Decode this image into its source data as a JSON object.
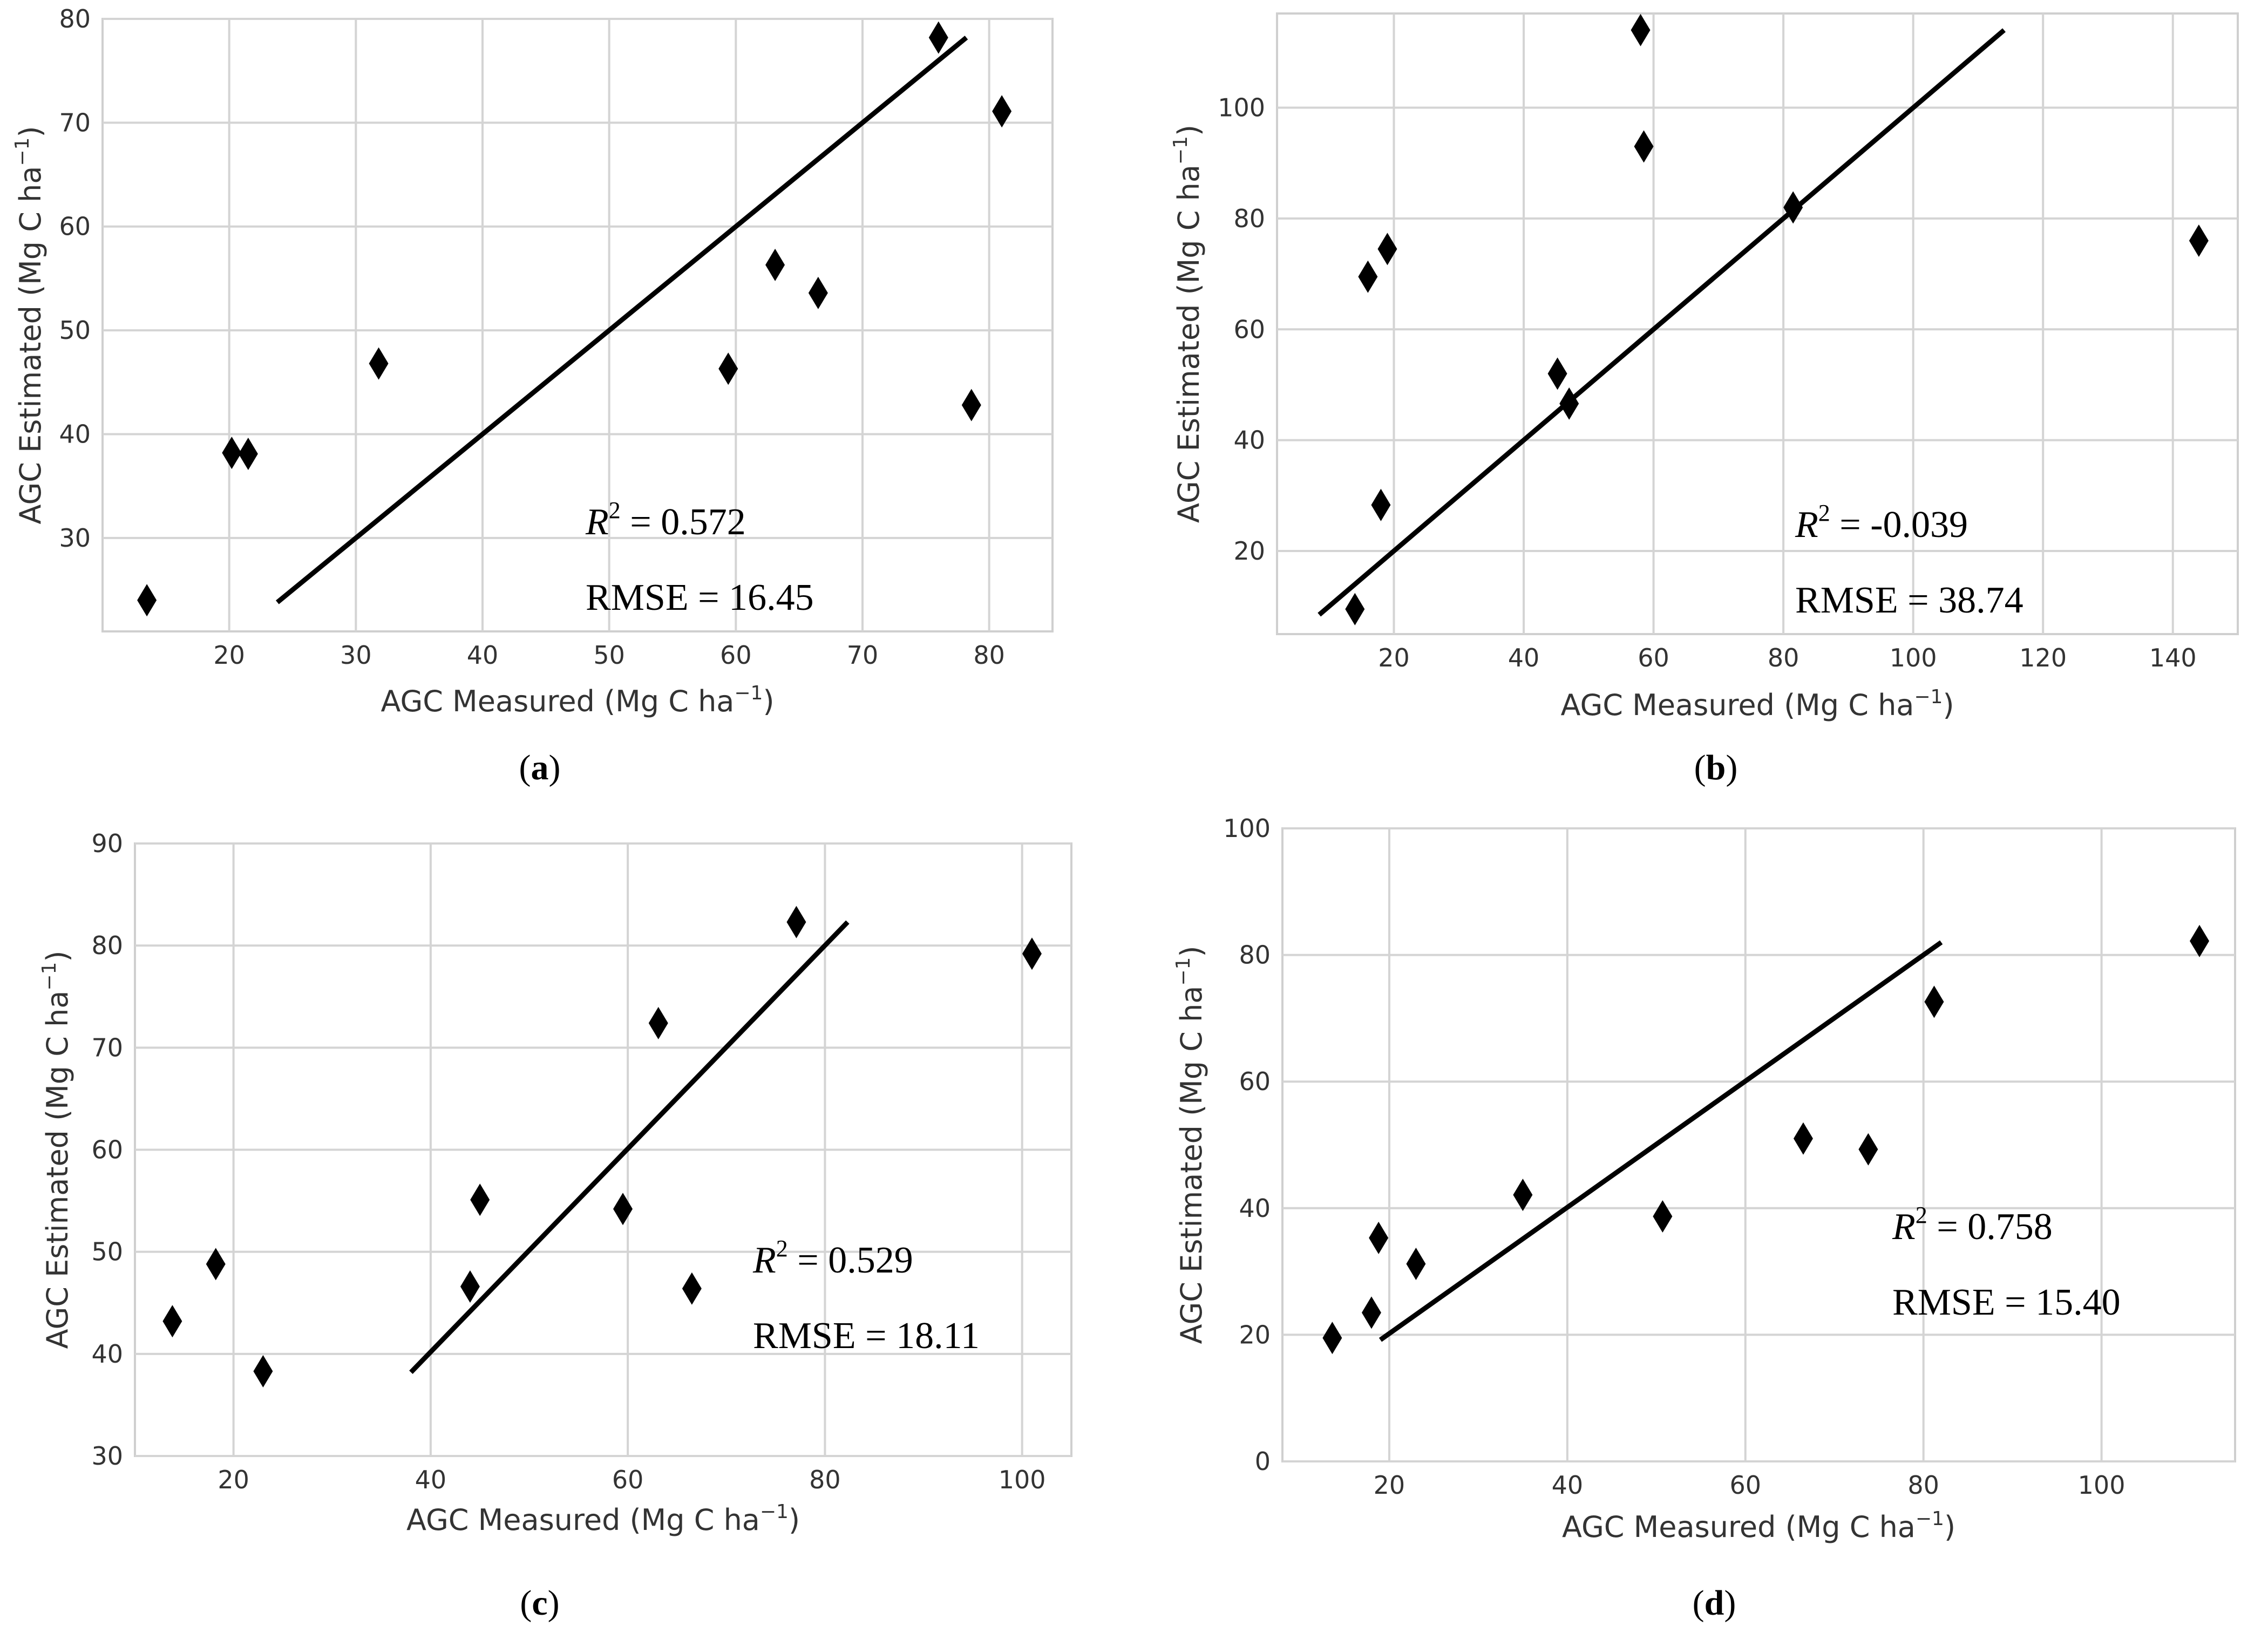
{
  "chart_data": [
    {
      "id": "a",
      "type": "scatter",
      "caption_letter": "a",
      "xlabel": "AGC Measured (Mg C ha",
      "ylabel": "AGC Estimated (Mg C ha",
      "unit_exponent": "−1",
      "xlim": [
        10,
        85
      ],
      "ylim": [
        21,
        80
      ],
      "xticks": [
        20,
        30,
        40,
        50,
        60,
        70,
        80
      ],
      "yticks": [
        30,
        40,
        50,
        60,
        70,
        80
      ],
      "points": [
        {
          "x": 13.5,
          "y": 24
        },
        {
          "x": 20.2,
          "y": 38.2
        },
        {
          "x": 21.5,
          "y": 38.1
        },
        {
          "x": 31.8,
          "y": 46.8
        },
        {
          "x": 59.4,
          "y": 46.3
        },
        {
          "x": 63.1,
          "y": 56.3
        },
        {
          "x": 66.5,
          "y": 53.6
        },
        {
          "x": 76,
          "y": 78.2
        },
        {
          "x": 78.6,
          "y": 42.8
        },
        {
          "x": 81,
          "y": 71.1
        }
      ],
      "fit_line": {
        "x": [
          23.8,
          78.2
        ],
        "y": [
          23.8,
          78.2
        ]
      },
      "r2_label": "R",
      "r2_value": " = 0.572",
      "rmse_text": "RMSE = 16.45"
    },
    {
      "id": "b",
      "type": "scatter",
      "caption_letter": "b",
      "xlabel": "AGC Measured (Mg C ha",
      "ylabel": "AGC Estimated (Mg C ha",
      "unit_exponent": "−1",
      "xlim": [
        2,
        150
      ],
      "ylim": [
        5,
        117
      ],
      "xticks": [
        20,
        40,
        60,
        80,
        100,
        120,
        140
      ],
      "yticks": [
        20,
        40,
        60,
        80,
        100
      ],
      "points": [
        {
          "x": 14,
          "y": 9.5
        },
        {
          "x": 16,
          "y": 69.5
        },
        {
          "x": 18,
          "y": 28.3
        },
        {
          "x": 19,
          "y": 74.5
        },
        {
          "x": 45.2,
          "y": 52
        },
        {
          "x": 47,
          "y": 46.6
        },
        {
          "x": 58,
          "y": 114
        },
        {
          "x": 58.5,
          "y": 93
        },
        {
          "x": 81.5,
          "y": 82
        },
        {
          "x": 144,
          "y": 76
        }
      ],
      "fit_line": {
        "x": [
          8.5,
          114
        ],
        "y": [
          8.5,
          114
        ]
      },
      "r2_label": "R",
      "r2_value": " = -0.039",
      "rmse_text": "RMSE = 38.74"
    },
    {
      "id": "c",
      "type": "scatter",
      "caption_letter": "c",
      "xlabel": "AGC Measured (Mg C ha",
      "ylabel": "AGC Estimated (Mg C ha",
      "unit_exponent": "−1",
      "xlim": [
        10,
        105
      ],
      "ylim": [
        30,
        90
      ],
      "xticks": [
        20,
        40,
        60,
        80,
        100
      ],
      "yticks": [
        30,
        40,
        50,
        60,
        70,
        80,
        90
      ],
      "points": [
        {
          "x": 13.8,
          "y": 43.2
        },
        {
          "x": 18.2,
          "y": 48.8
        },
        {
          "x": 23,
          "y": 38.3
        },
        {
          "x": 44,
          "y": 46.6
        },
        {
          "x": 45,
          "y": 55.1
        },
        {
          "x": 59.5,
          "y": 54.2
        },
        {
          "x": 63.1,
          "y": 72.4
        },
        {
          "x": 66.5,
          "y": 46.4
        },
        {
          "x": 77.1,
          "y": 82.3
        },
        {
          "x": 101,
          "y": 79.2
        }
      ],
      "fit_line": {
        "x": [
          38,
          82.3
        ],
        "y": [
          38.2,
          82.3
        ]
      },
      "r2_label": "R",
      "r2_value": " = 0.529",
      "rmse_text": "RMSE = 18.11"
    },
    {
      "id": "d",
      "type": "scatter",
      "caption_letter": "d",
      "xlabel": "AGC Measured (Mg C ha",
      "ylabel": "AGC Estimated (Mg C ha",
      "unit_exponent": "−1",
      "xlim": [
        8,
        115
      ],
      "ylim": [
        0,
        100
      ],
      "xticks": [
        20,
        40,
        60,
        80,
        100
      ],
      "yticks": [
        0,
        20,
        40,
        60,
        80,
        100
      ],
      "points": [
        {
          "x": 13.6,
          "y": 19.5
        },
        {
          "x": 18,
          "y": 23.5
        },
        {
          "x": 18.8,
          "y": 35.3
        },
        {
          "x": 23,
          "y": 31.2
        },
        {
          "x": 35,
          "y": 42.1
        },
        {
          "x": 50.7,
          "y": 38.7
        },
        {
          "x": 66.5,
          "y": 51
        },
        {
          "x": 73.8,
          "y": 49.3
        },
        {
          "x": 81.2,
          "y": 72.6
        },
        {
          "x": 111,
          "y": 82.2
        }
      ],
      "fit_line": {
        "x": [
          19,
          82
        ],
        "y": [
          19.2,
          82
        ]
      },
      "r2_label": "R",
      "r2_value": " = 0.758",
      "rmse_text": "RMSE = 15.40"
    }
  ]
}
